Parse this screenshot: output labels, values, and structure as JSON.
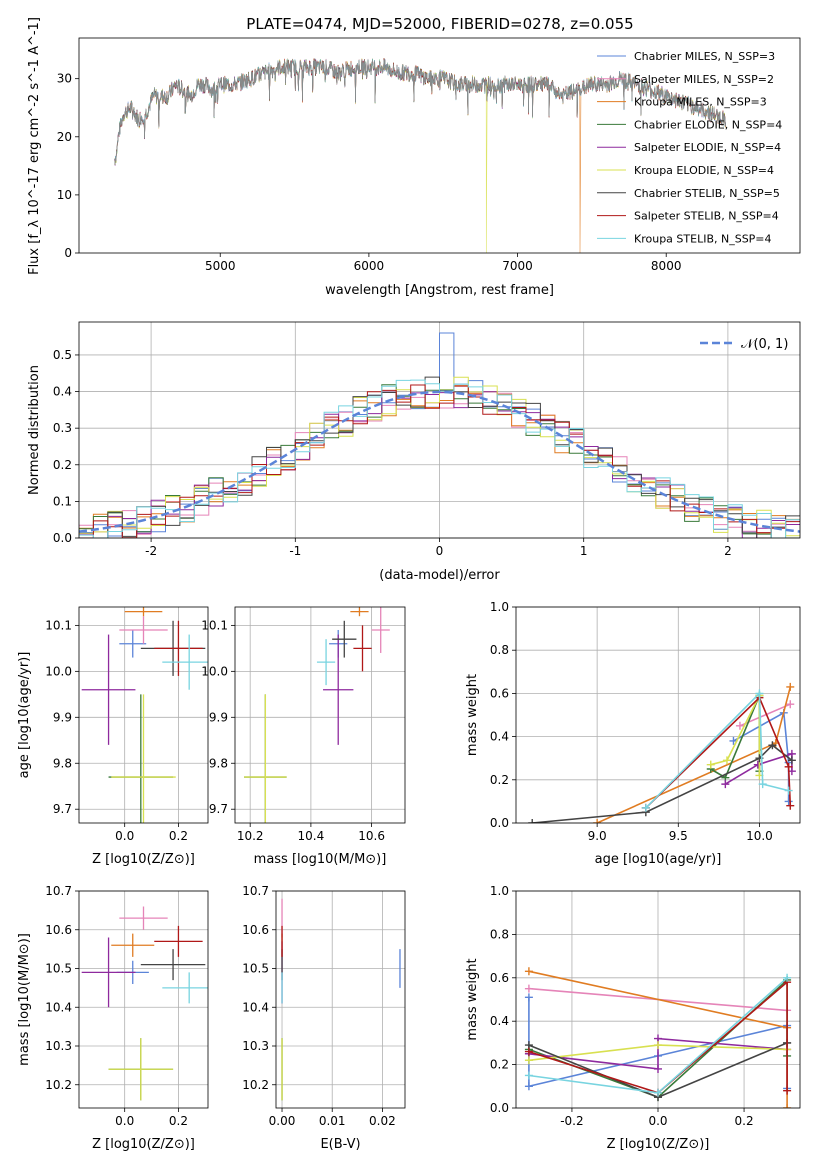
{
  "figure_title": "PLATE=0474, MJD=52000, FIBERID=0278, z=0.055",
  "colors": [
    "#5b84d8",
    "#e584b8",
    "#e07c22",
    "#3a7a3a",
    "#8e2a9e",
    "#d8e050",
    "#444444",
    "#b01818",
    "#78d4e0"
  ],
  "chart_data": [
    {
      "id": "spectrum",
      "type": "line",
      "xlabel": "wavelength [Angstrom, rest frame]",
      "ylabel": "Flux [f_λ 10^-17 erg cm^-2 s^-1 A^-1]",
      "xlim": [
        4050,
        8900
      ],
      "ylim": [
        0,
        37
      ],
      "xticks": [
        5000,
        6000,
        7000,
        8000
      ],
      "yticks": [
        0,
        10,
        20,
        30
      ],
      "grid": false,
      "legend_position": "top-right",
      "series": [
        {
          "name": "Chabrier MILES, N_SSP=3"
        },
        {
          "name": "Salpeter MILES, N_SSP=2"
        },
        {
          "name": "Kroupa MILES, N_SSP=3"
        },
        {
          "name": "Chabrier ELODIE, N_SSP=4"
        },
        {
          "name": "Salpeter ELODIE, N_SSP=4"
        },
        {
          "name": "Kroupa ELODIE, N_SSP=4"
        },
        {
          "name": "Chabrier STELIB, N_SSP=5"
        },
        {
          "name": "Salpeter STELIB, N_SSP=4"
        },
        {
          "name": "Kroupa STELIB, N_SSP=4"
        }
      ],
      "data_curve_x": [
        4290,
        4300,
        4320,
        4350,
        4400,
        4450,
        4500,
        4550,
        4600,
        4650,
        4700,
        4750,
        4800,
        4850,
        4900,
        4950,
        5000,
        5100,
        5200,
        5300,
        5400,
        5500,
        5600,
        5700,
        5800,
        5900,
        6000,
        6100,
        6200,
        6300,
        6400,
        6500,
        6600,
        6700,
        6800,
        6900,
        7000,
        7100,
        7200,
        7300,
        7400,
        7500,
        7600,
        7700,
        7800,
        7900,
        8000,
        8100,
        8200,
        8300,
        8400
      ],
      "data_curve_y": [
        16,
        17,
        21,
        24,
        25,
        23,
        24,
        27,
        27,
        27,
        29,
        28,
        27,
        29,
        29,
        28,
        29,
        29,
        30,
        31,
        32,
        32,
        32,
        32,
        31,
        32,
        32,
        32,
        31,
        31,
        30,
        30,
        29,
        29,
        29,
        29,
        29,
        29,
        29,
        27,
        28,
        29,
        29,
        30,
        29,
        28,
        27,
        26,
        25,
        24,
        23
      ],
      "drops": [
        {
          "x": 6790,
          "series": 5,
          "note": "drop to 0"
        },
        {
          "x": 7420,
          "series": 2,
          "note": "drop to 0"
        }
      ]
    },
    {
      "id": "residuals",
      "type": "line",
      "xlabel": "(data-model)/error",
      "ylabel": "Normed distribution",
      "xlim": [
        -2.5,
        2.5
      ],
      "ylim": [
        0,
        0.59
      ],
      "xticks": [
        -2,
        -1,
        0,
        1,
        2
      ],
      "yticks": [
        0.0,
        0.1,
        0.2,
        0.3,
        0.4,
        0.5
      ],
      "grid": true,
      "legend_position": "top-right",
      "legend_label": "𝒩(0, 1)",
      "bin_width": 0.1,
      "reference_curve": "gaussian mean 0 sigma 1"
    },
    {
      "id": "age-vs-Z",
      "type": "scatter",
      "xlabel": "Z [log10(Z/Z⊙)]",
      "ylabel": "age  [log10(age/yr)]",
      "xlim": [
        -0.17,
        0.31
      ],
      "ylim": [
        9.67,
        10.14
      ],
      "xticks": [
        0.0,
        0.2
      ],
      "yticks": [
        9.7,
        9.8,
        9.9,
        10.0,
        10.1
      ],
      "grid": true,
      "points": [
        {
          "series": 0,
          "x": 0.03,
          "y": 10.06,
          "xerr": 0.05,
          "yerr": 0.03
        },
        {
          "series": 1,
          "x": 0.07,
          "y": 10.09,
          "xerr": 0.09,
          "yerr": 0.03
        },
        {
          "series": 2,
          "x": 0.07,
          "y": 10.13,
          "xerr": 0.07,
          "yerr": 0.01
        },
        {
          "series": 3,
          "x": 0.06,
          "y": 9.77,
          "xerr": 0.12,
          "yerr": 0.18
        },
        {
          "series": 4,
          "x": -0.06,
          "y": 9.96,
          "xerr": 0.1,
          "yerr": 0.12
        },
        {
          "series": 5,
          "x": 0.07,
          "y": 9.77,
          "xerr": 0.12,
          "yerr": 0.18
        },
        {
          "series": 6,
          "x": 0.18,
          "y": 10.05,
          "xerr": 0.12,
          "yerr": 0.06
        },
        {
          "series": 7,
          "x": 0.2,
          "y": 10.05,
          "xerr": 0.09,
          "yerr": 0.06
        },
        {
          "series": 8,
          "x": 0.24,
          "y": 10.02,
          "xerr": 0.1,
          "yerr": 0.06
        }
      ]
    },
    {
      "id": "age-vs-mass",
      "type": "scatter",
      "xlabel": "mass [log10(M/M⊙)]",
      "ylabel": "",
      "xlim": [
        10.15,
        10.71
      ],
      "ylim": [
        9.67,
        10.14
      ],
      "xticks": [
        10.2,
        10.4,
        10.6
      ],
      "yticks": [
        9.7,
        9.8,
        9.9,
        10.0,
        10.1
      ],
      "grid": true,
      "points": [
        {
          "series": 0,
          "x": 10.49,
          "y": 10.06,
          "xerr": 0.03,
          "yerr": 0.03
        },
        {
          "series": 1,
          "x": 10.63,
          "y": 10.09,
          "xerr": 0.03,
          "yerr": 0.05
        },
        {
          "series": 2,
          "x": 10.56,
          "y": 10.13,
          "xerr": 0.03,
          "yerr": 0.01
        },
        {
          "series": 3,
          "x": 10.25,
          "y": 9.77,
          "xerr": 0.07,
          "yerr": 0.18
        },
        {
          "series": 4,
          "x": 10.49,
          "y": 9.96,
          "xerr": 0.05,
          "yerr": 0.12
        },
        {
          "series": 5,
          "x": 10.25,
          "y": 9.77,
          "xerr": 0.07,
          "yerr": 0.18
        },
        {
          "series": 6,
          "x": 10.51,
          "y": 10.07,
          "xerr": 0.04,
          "yerr": 0.04
        },
        {
          "series": 7,
          "x": 10.57,
          "y": 10.05,
          "xerr": 0.03,
          "yerr": 0.05
        },
        {
          "series": 8,
          "x": 10.45,
          "y": 10.02,
          "xerr": 0.03,
          "yerr": 0.05
        }
      ]
    },
    {
      "id": "massweight-vs-age",
      "type": "line",
      "xlabel": "age  [log10(age/yr)]",
      "ylabel": "mass weight",
      "xlim": [
        8.5,
        10.25
      ],
      "ylim": [
        0.0,
        1.0
      ],
      "xticks": [
        9.0,
        9.5,
        10.0
      ],
      "yticks": [
        0.0,
        0.2,
        0.4,
        0.6,
        0.8,
        1.0
      ],
      "grid": true,
      "series": [
        {
          "x": [
            9.84,
            10.15,
            10.18,
            10.18
          ],
          "y": [
            0.38,
            0.51,
            0.28,
            0.1
          ]
        },
        {
          "x": [
            9.88,
            10.19
          ],
          "y": [
            0.45,
            0.55
          ]
        },
        {
          "x": [
            9.0,
            10.1,
            10.19
          ],
          "y": [
            0.0,
            0.37,
            0.63
          ]
        },
        {
          "x": [
            9.7,
            9.79,
            10.0,
            10.0
          ],
          "y": [
            0.25,
            0.21,
            0.59,
            0.24
          ]
        },
        {
          "x": [
            9.79,
            9.99,
            10.2,
            10.2
          ],
          "y": [
            0.18,
            0.27,
            0.32,
            0.24
          ]
        },
        {
          "x": [
            9.7,
            9.8,
            10.0,
            10.0
          ],
          "y": [
            0.27,
            0.29,
            0.59,
            0.22
          ]
        },
        {
          "x": [
            8.6,
            9.3,
            10.0,
            10.08,
            10.2
          ],
          "y": [
            0.0,
            0.05,
            0.3,
            0.36,
            0.29
          ]
        },
        {
          "x": [
            9.3,
            10.0,
            10.18,
            10.19
          ],
          "y": [
            0.07,
            0.58,
            0.26,
            0.08
          ]
        },
        {
          "x": [
            9.3,
            10.0,
            10.02,
            10.18
          ],
          "y": [
            0.07,
            0.6,
            0.18,
            0.15
          ]
        }
      ]
    },
    {
      "id": "mass-vs-Z",
      "type": "scatter",
      "xlabel": "Z [log10(Z/Z⊙)]",
      "ylabel": "mass [log10(M/M⊙)]",
      "xlim": [
        -0.17,
        0.31
      ],
      "ylim": [
        10.14,
        10.7
      ],
      "xticks": [
        0.0,
        0.2
      ],
      "yticks": [
        10.2,
        10.3,
        10.4,
        10.5,
        10.6,
        10.7
      ],
      "grid": true,
      "points": [
        {
          "series": 0,
          "x": 0.03,
          "y": 10.49,
          "xerr": 0.06,
          "yerr": 0.03
        },
        {
          "series": 1,
          "x": 0.07,
          "y": 10.63,
          "xerr": 0.09,
          "yerr": 0.03
        },
        {
          "series": 2,
          "x": 0.03,
          "y": 10.56,
          "xerr": 0.08,
          "yerr": 0.03
        },
        {
          "series": 3,
          "x": 0.06,
          "y": 10.24,
          "xerr": 0.12,
          "yerr": 0.08
        },
        {
          "series": 4,
          "x": -0.06,
          "y": 10.49,
          "xerr": 0.1,
          "yerr": 0.09
        },
        {
          "series": 5,
          "x": 0.06,
          "y": 10.24,
          "xerr": 0.12,
          "yerr": 0.08
        },
        {
          "series": 6,
          "x": 0.18,
          "y": 10.51,
          "xerr": 0.12,
          "yerr": 0.04
        },
        {
          "series": 7,
          "x": 0.2,
          "y": 10.57,
          "xerr": 0.09,
          "yerr": 0.04
        },
        {
          "series": 8,
          "x": 0.24,
          "y": 10.45,
          "xerr": 0.1,
          "yerr": 0.04
        }
      ]
    },
    {
      "id": "mass-vs-EBV",
      "type": "scatter",
      "xlabel": "E(B-V)",
      "ylabel": "",
      "xlim": [
        -0.0012,
        0.0245
      ],
      "ylim": [
        10.14,
        10.7
      ],
      "xticks": [
        0.0,
        0.01,
        0.02
      ],
      "yticks": [
        10.2,
        10.3,
        10.4,
        10.5,
        10.6,
        10.7
      ],
      "grid": true,
      "points": [
        {
          "series": 0,
          "x": 0.0235,
          "y": 10.5,
          "xerr": 0,
          "yerr": 0.05
        },
        {
          "series": 1,
          "x": 0.0,
          "y": 10.63,
          "xerr": 0,
          "yerr": 0.05
        },
        {
          "series": 2,
          "x": 0.0,
          "y": 10.56,
          "xerr": 0,
          "yerr": 0.03
        },
        {
          "series": 3,
          "x": 0.0,
          "y": 10.24,
          "xerr": 0,
          "yerr": 0.08
        },
        {
          "series": 4,
          "x": 0.0,
          "y": 10.49,
          "xerr": 0,
          "yerr": 0.08
        },
        {
          "series": 5,
          "x": 0.0,
          "y": 10.24,
          "xerr": 0,
          "yerr": 0.08
        },
        {
          "series": 6,
          "x": 0.0,
          "y": 10.51,
          "xerr": 0,
          "yerr": 0.04
        },
        {
          "series": 7,
          "x": 0.0,
          "y": 10.57,
          "xerr": 0,
          "yerr": 0.04
        },
        {
          "series": 8,
          "x": 0.0,
          "y": 10.45,
          "xerr": 0,
          "yerr": 0.04
        }
      ]
    },
    {
      "id": "massweight-vs-Z",
      "type": "line",
      "xlabel": "Z [log10(Z/Z⊙)]",
      "ylabel": "mass weight",
      "xlim": [
        -0.33,
        0.33
      ],
      "ylim": [
        0.0,
        1.0
      ],
      "xticks": [
        -0.2,
        0.0,
        0.2
      ],
      "yticks": [
        0.0,
        0.2,
        0.4,
        0.6,
        0.8,
        1.0
      ],
      "grid": true,
      "series": [
        {
          "x": [
            -0.3,
            -0.3,
            0.0,
            0.3,
            0.3
          ],
          "y": [
            0.51,
            0.1,
            0.24,
            0.38,
            0.09
          ]
        },
        {
          "x": [
            -0.3,
            0.3
          ],
          "y": [
            0.55,
            0.45
          ]
        },
        {
          "x": [
            -0.3,
            0.3,
            0.3
          ],
          "y": [
            0.63,
            0.37,
            0.0
          ]
        },
        {
          "x": [
            -0.3,
            0.0,
            0.3,
            0.3
          ],
          "y": [
            0.27,
            0.05,
            0.59,
            0.24
          ]
        },
        {
          "x": [
            -0.3,
            0.0,
            0.0,
            0.3
          ],
          "y": [
            0.25,
            0.18,
            0.32,
            0.27
          ]
        },
        {
          "x": [
            -0.3,
            0.0,
            0.3
          ],
          "y": [
            0.22,
            0.29,
            0.27
          ]
        },
        {
          "x": [
            -0.3,
            0.0,
            0.3,
            0.3
          ],
          "y": [
            0.29,
            0.05,
            0.3,
            0.3
          ]
        },
        {
          "x": [
            -0.3,
            0.0,
            0.3,
            0.3
          ],
          "y": [
            0.26,
            0.07,
            0.58,
            0.08
          ]
        },
        {
          "x": [
            -0.3,
            0.0,
            0.3
          ],
          "y": [
            0.15,
            0.07,
            0.6
          ]
        }
      ]
    }
  ]
}
